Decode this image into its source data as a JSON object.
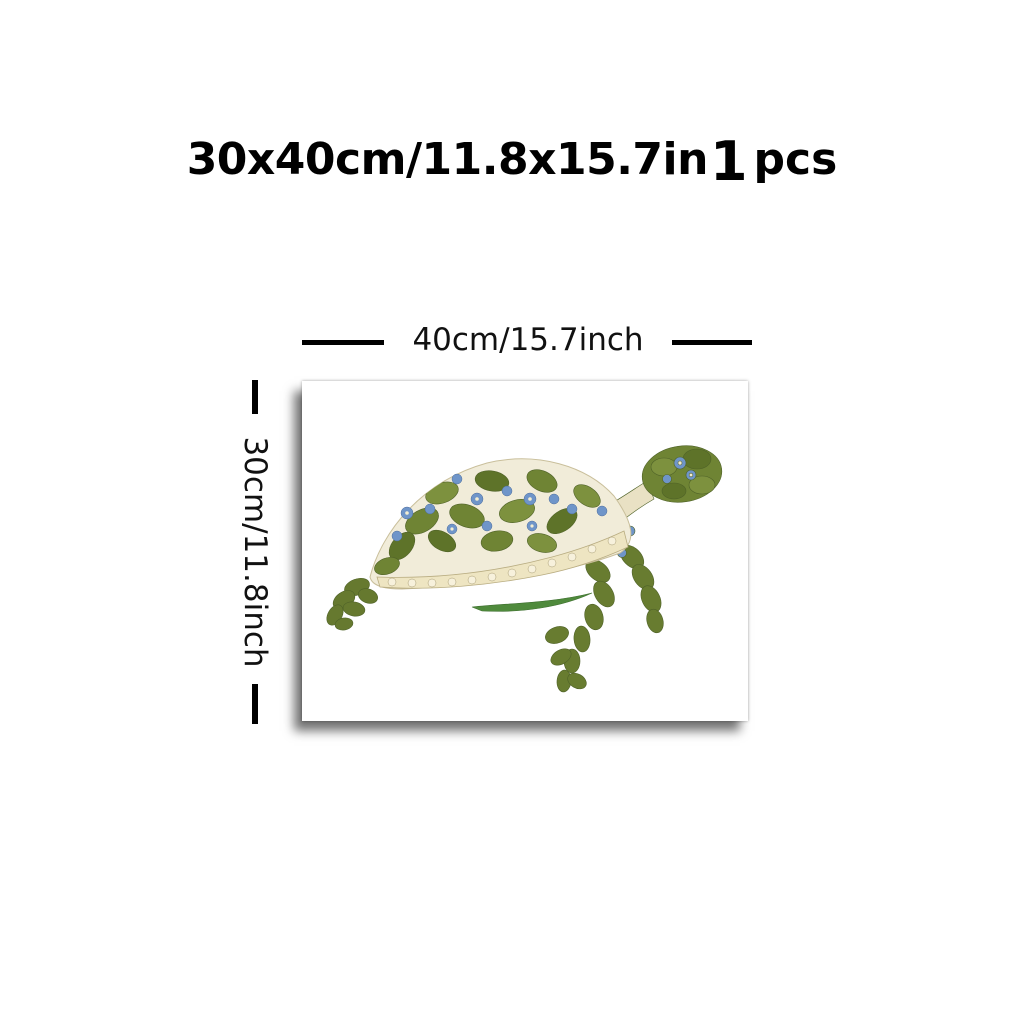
{
  "headline": {
    "size_text": "30x40cm/11.8x15.7in",
    "quantity": "1",
    "quantity_unit": "pcs"
  },
  "dimensions": {
    "width_label": "40cm/15.7inch",
    "height_label": "30cm/11.8inch"
  },
  "artwork": {
    "subject": "sea-turtle-icon",
    "colors": {
      "fern_green": "#6b7f3a",
      "fern_dark": "#4f6228",
      "flower_blue": "#6f95c9",
      "flower_cream": "#efe6c8",
      "seagrass": "#4f8a3c"
    }
  }
}
